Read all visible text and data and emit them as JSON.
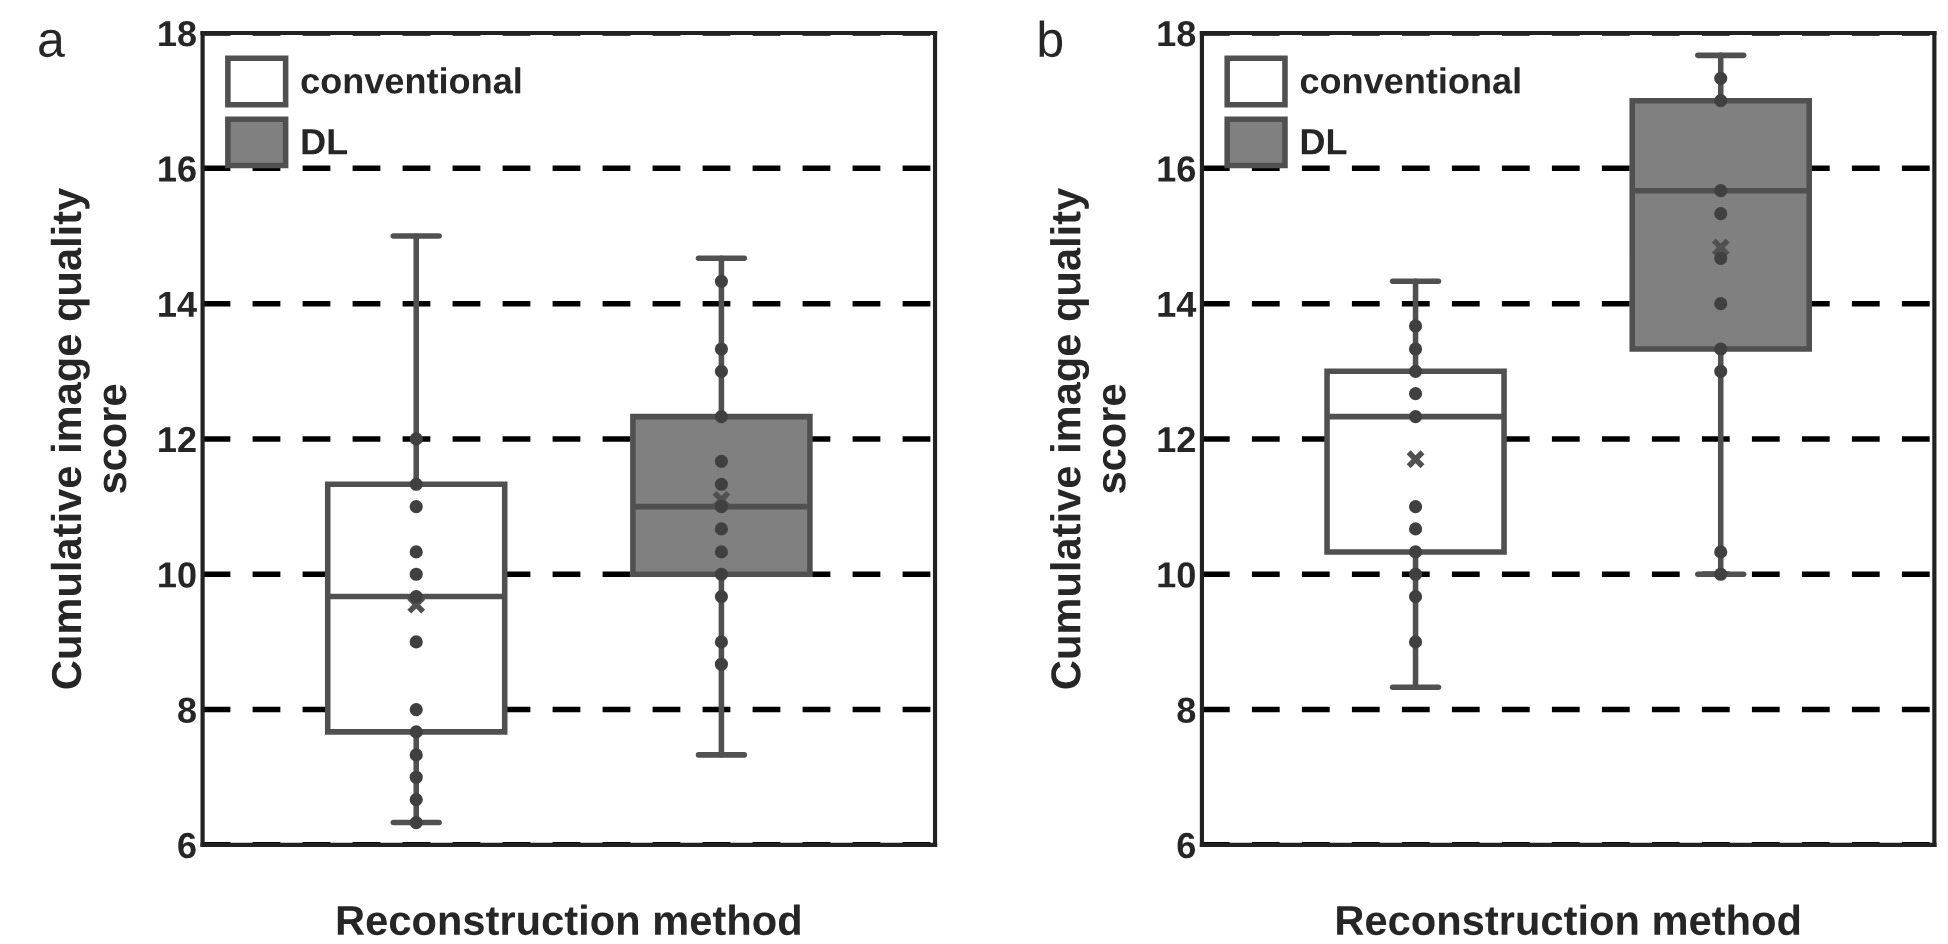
{
  "chart_data": [
    {
      "type": "box",
      "title": "a",
      "xlabel": "Reconstruction method",
      "ylabel": "Cumulative image quality\nscore",
      "categories": [
        null,
        null
      ],
      "ylim": [
        6,
        18
      ],
      "yticks": [
        6,
        8,
        10,
        12,
        14,
        16,
        18
      ],
      "grid": "y",
      "legend": "top left",
      "series": [
        {
          "name": "conventional",
          "color": "#ffffff",
          "boxes": [
            {
              "low": 6.33,
              "q1": 7.67,
              "median": 9.67,
              "q3": 11.33,
              "high": 15,
              "mean": 9.55
            },
            null
          ]
        },
        {
          "name": "DL",
          "color": "#808080",
          "boxes": [
            null,
            {
              "low": 7.33,
              "q1": 10,
              "median": 11,
              "q3": 12.33,
              "high": 14.67,
              "mean": 11.1
            }
          ]
        },
        {
          "type": "scatter",
          "color": "#404040",
          "marker": "circle",
          "values": [
            12,
            14.33
          ]
        },
        {
          "type": "scatter",
          "color": "#404040",
          "marker": "circle",
          "values": [
            11.33,
            13.33
          ]
        },
        {
          "type": "scatter",
          "color": "#404040",
          "marker": "circle",
          "values": [
            11,
            13
          ]
        },
        {
          "type": "scatter",
          "color": "#404040",
          "marker": "circle",
          "values": [
            10.33,
            12.33
          ]
        },
        {
          "type": "scatter",
          "color": "#404040",
          "marker": "circle",
          "values": [
            10,
            11.67
          ]
        },
        {
          "type": "scatter",
          "color": "#404040",
          "marker": "circle",
          "values": [
            9.67,
            11.33
          ]
        },
        {
          "type": "scatter",
          "color": "#404040",
          "marker": "circle",
          "values": [
            9,
            11
          ]
        },
        {
          "type": "scatter",
          "color": "#404040",
          "marker": "circle",
          "values": [
            8,
            10.67
          ]
        },
        {
          "type": "scatter",
          "color": "#404040",
          "marker": "circle",
          "values": [
            7.67,
            10.33
          ]
        },
        {
          "type": "scatter",
          "color": "#404040",
          "marker": "circle",
          "values": [
            7.33,
            10
          ]
        },
        {
          "type": "scatter",
          "color": "#404040",
          "marker": "circle",
          "values": [
            7,
            9.67
          ]
        },
        {
          "type": "scatter",
          "color": "#404040",
          "marker": "circle",
          "values": [
            6.67,
            9
          ]
        },
        {
          "type": "scatter",
          "color": "#404040",
          "marker": "circle",
          "values": [
            6.33,
            8.67
          ]
        }
      ]
    },
    {
      "type": "box",
      "title": "b",
      "xlabel": "Reconstruction method",
      "ylabel": "Cumulative image quality\nscore",
      "categories": [
        null,
        null
      ],
      "ylim": [
        6,
        18
      ],
      "yticks": [
        6,
        8,
        10,
        12,
        14,
        16,
        18
      ],
      "grid": "y",
      "legend": "top left",
      "series": [
        {
          "name": "conventional",
          "color": "#ffffff",
          "boxes": [
            {
              "low": 8.33,
              "q1": 10.33,
              "median": 12.33,
              "q3": 13,
              "high": 14.33,
              "mean": 11.7
            },
            null
          ]
        },
        {
          "name": "DL",
          "color": "#808080",
          "boxes": [
            null,
            {
              "low": 10,
              "q1": 13.33,
              "median": 15.67,
              "q3": 17,
              "high": 17.67,
              "mean": 14.83
            }
          ]
        },
        {
          "type": "scatter",
          "color": "#404040",
          "marker": "circle",
          "values": [
            13.67,
            17.33
          ]
        },
        {
          "type": "scatter",
          "color": "#404040",
          "marker": "circle",
          "values": [
            13.33,
            17
          ]
        },
        {
          "type": "scatter",
          "color": "#404040",
          "marker": "circle",
          "values": [
            13,
            15.67
          ]
        },
        {
          "type": "scatter",
          "color": "#404040",
          "marker": "circle",
          "values": [
            12.67,
            15.33
          ]
        },
        {
          "type": "scatter",
          "color": "#404040",
          "marker": "circle",
          "values": [
            12.33,
            14.67
          ]
        },
        {
          "type": "scatter",
          "color": "#404040",
          "marker": "circle",
          "values": [
            11,
            14
          ]
        },
        {
          "type": "scatter",
          "color": "#404040",
          "marker": "circle",
          "values": [
            10.67,
            13.33
          ]
        },
        {
          "type": "scatter",
          "color": "#404040",
          "marker": "circle",
          "values": [
            10.33,
            13
          ]
        },
        {
          "type": "scatter",
          "color": "#404040",
          "marker": "circle",
          "values": [
            10,
            10.33
          ]
        },
        {
          "type": "scatter",
          "color": "#404040",
          "marker": "circle",
          "values": [
            9.67,
            10
          ]
        },
        {
          "type": "scatter",
          "color": "#404040",
          "marker": "circle",
          "values": [
            9,
            null
          ]
        }
      ]
    }
  ]
}
